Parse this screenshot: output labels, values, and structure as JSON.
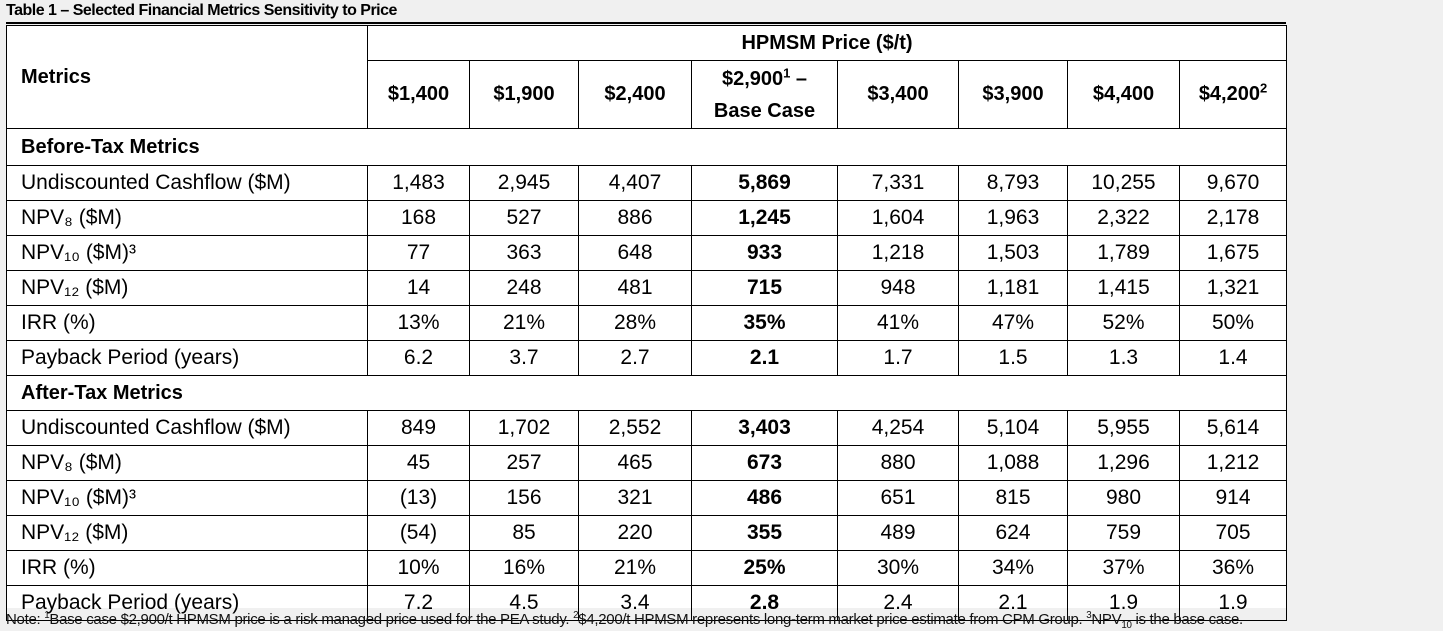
{
  "title": "Table 1 – Selected Financial Metrics Sensitivity to Price",
  "header": {
    "metrics_label": "Metrics",
    "price_label": "HPMSM Price ($/t)",
    "columns": [
      {
        "label": "$1,400",
        "sup": ""
      },
      {
        "label": "$1,900",
        "sup": ""
      },
      {
        "label": "$2,400",
        "sup": ""
      },
      {
        "label": "$2,900",
        "sup": "1",
        "suffix": " –",
        "line2": "Base Case"
      },
      {
        "label": "$3,400",
        "sup": ""
      },
      {
        "label": "$3,900",
        "sup": ""
      },
      {
        "label": "$4,400",
        "sup": ""
      },
      {
        "label": "$4,200",
        "sup": "2"
      }
    ]
  },
  "sections": [
    {
      "name": "Before-Tax Metrics",
      "rows": [
        {
          "label": "Undiscounted Cashflow ($M)",
          "values": [
            "1,483",
            "2,945",
            "4,407",
            "5,869",
            "7,331",
            "8,793",
            "10,255",
            "9,670"
          ]
        },
        {
          "label": "NPV₈ ($M)",
          "values": [
            "168",
            "527",
            "886",
            "1,245",
            "1,604",
            "1,963",
            "2,322",
            "2,178"
          ]
        },
        {
          "label": "NPV₁₀ ($M)³",
          "values": [
            "77",
            "363",
            "648",
            "933",
            "1,218",
            "1,503",
            "1,789",
            "1,675"
          ]
        },
        {
          "label": "NPV₁₂ ($M)",
          "values": [
            "14",
            "248",
            "481",
            "715",
            "948",
            "1,181",
            "1,415",
            "1,321"
          ]
        },
        {
          "label": "IRR (%)",
          "values": [
            "13%",
            "21%",
            "28%",
            "35%",
            "41%",
            "47%",
            "52%",
            "50%"
          ]
        },
        {
          "label": "Payback Period (years)",
          "values": [
            "6.2",
            "3.7",
            "2.7",
            "2.1",
            "1.7",
            "1.5",
            "1.3",
            "1.4"
          ]
        }
      ]
    },
    {
      "name": "After-Tax Metrics",
      "rows": [
        {
          "label": "Undiscounted Cashflow ($M)",
          "values": [
            "849",
            "1,702",
            "2,552",
            "3,403",
            "4,254",
            "5,104",
            "5,955",
            "5,614"
          ]
        },
        {
          "label": "NPV₈ ($M)",
          "values": [
            "45",
            "257",
            "465",
            "673",
            "880",
            "1,088",
            "1,296",
            "1,212"
          ]
        },
        {
          "label": "NPV₁₀ ($M)³",
          "values": [
            "(13)",
            "156",
            "321",
            "486",
            "651",
            "815",
            "980",
            "914"
          ]
        },
        {
          "label": "NPV₁₂ ($M)",
          "values": [
            "(54)",
            "85",
            "220",
            "355",
            "489",
            "624",
            "759",
            "705"
          ]
        },
        {
          "label": "IRR (%)",
          "values": [
            "10%",
            "16%",
            "21%",
            "25%",
            "30%",
            "34%",
            "37%",
            "36%"
          ]
        },
        {
          "label": "Payback Period (years)",
          "values": [
            "7.2",
            "4.5",
            "3.4",
            "2.8",
            "2.4",
            "2.1",
            "1.9",
            "1.9"
          ]
        }
      ]
    }
  ],
  "bold_column_index": 3,
  "note": {
    "prefix": "Note: ",
    "n1_sup": "1",
    "n1_text": "Base case $2,900/t HPMSM price is a risk managed price used for the PEA study. ",
    "n2_sup": "2",
    "n2_text": "$4,200/t HPMSM represents long-term market price estimate from CPM Group. ",
    "n3_sup": "3",
    "n3_text_a": "NPV",
    "n3_sub": "10",
    "n3_text_b": " is the base case."
  }
}
